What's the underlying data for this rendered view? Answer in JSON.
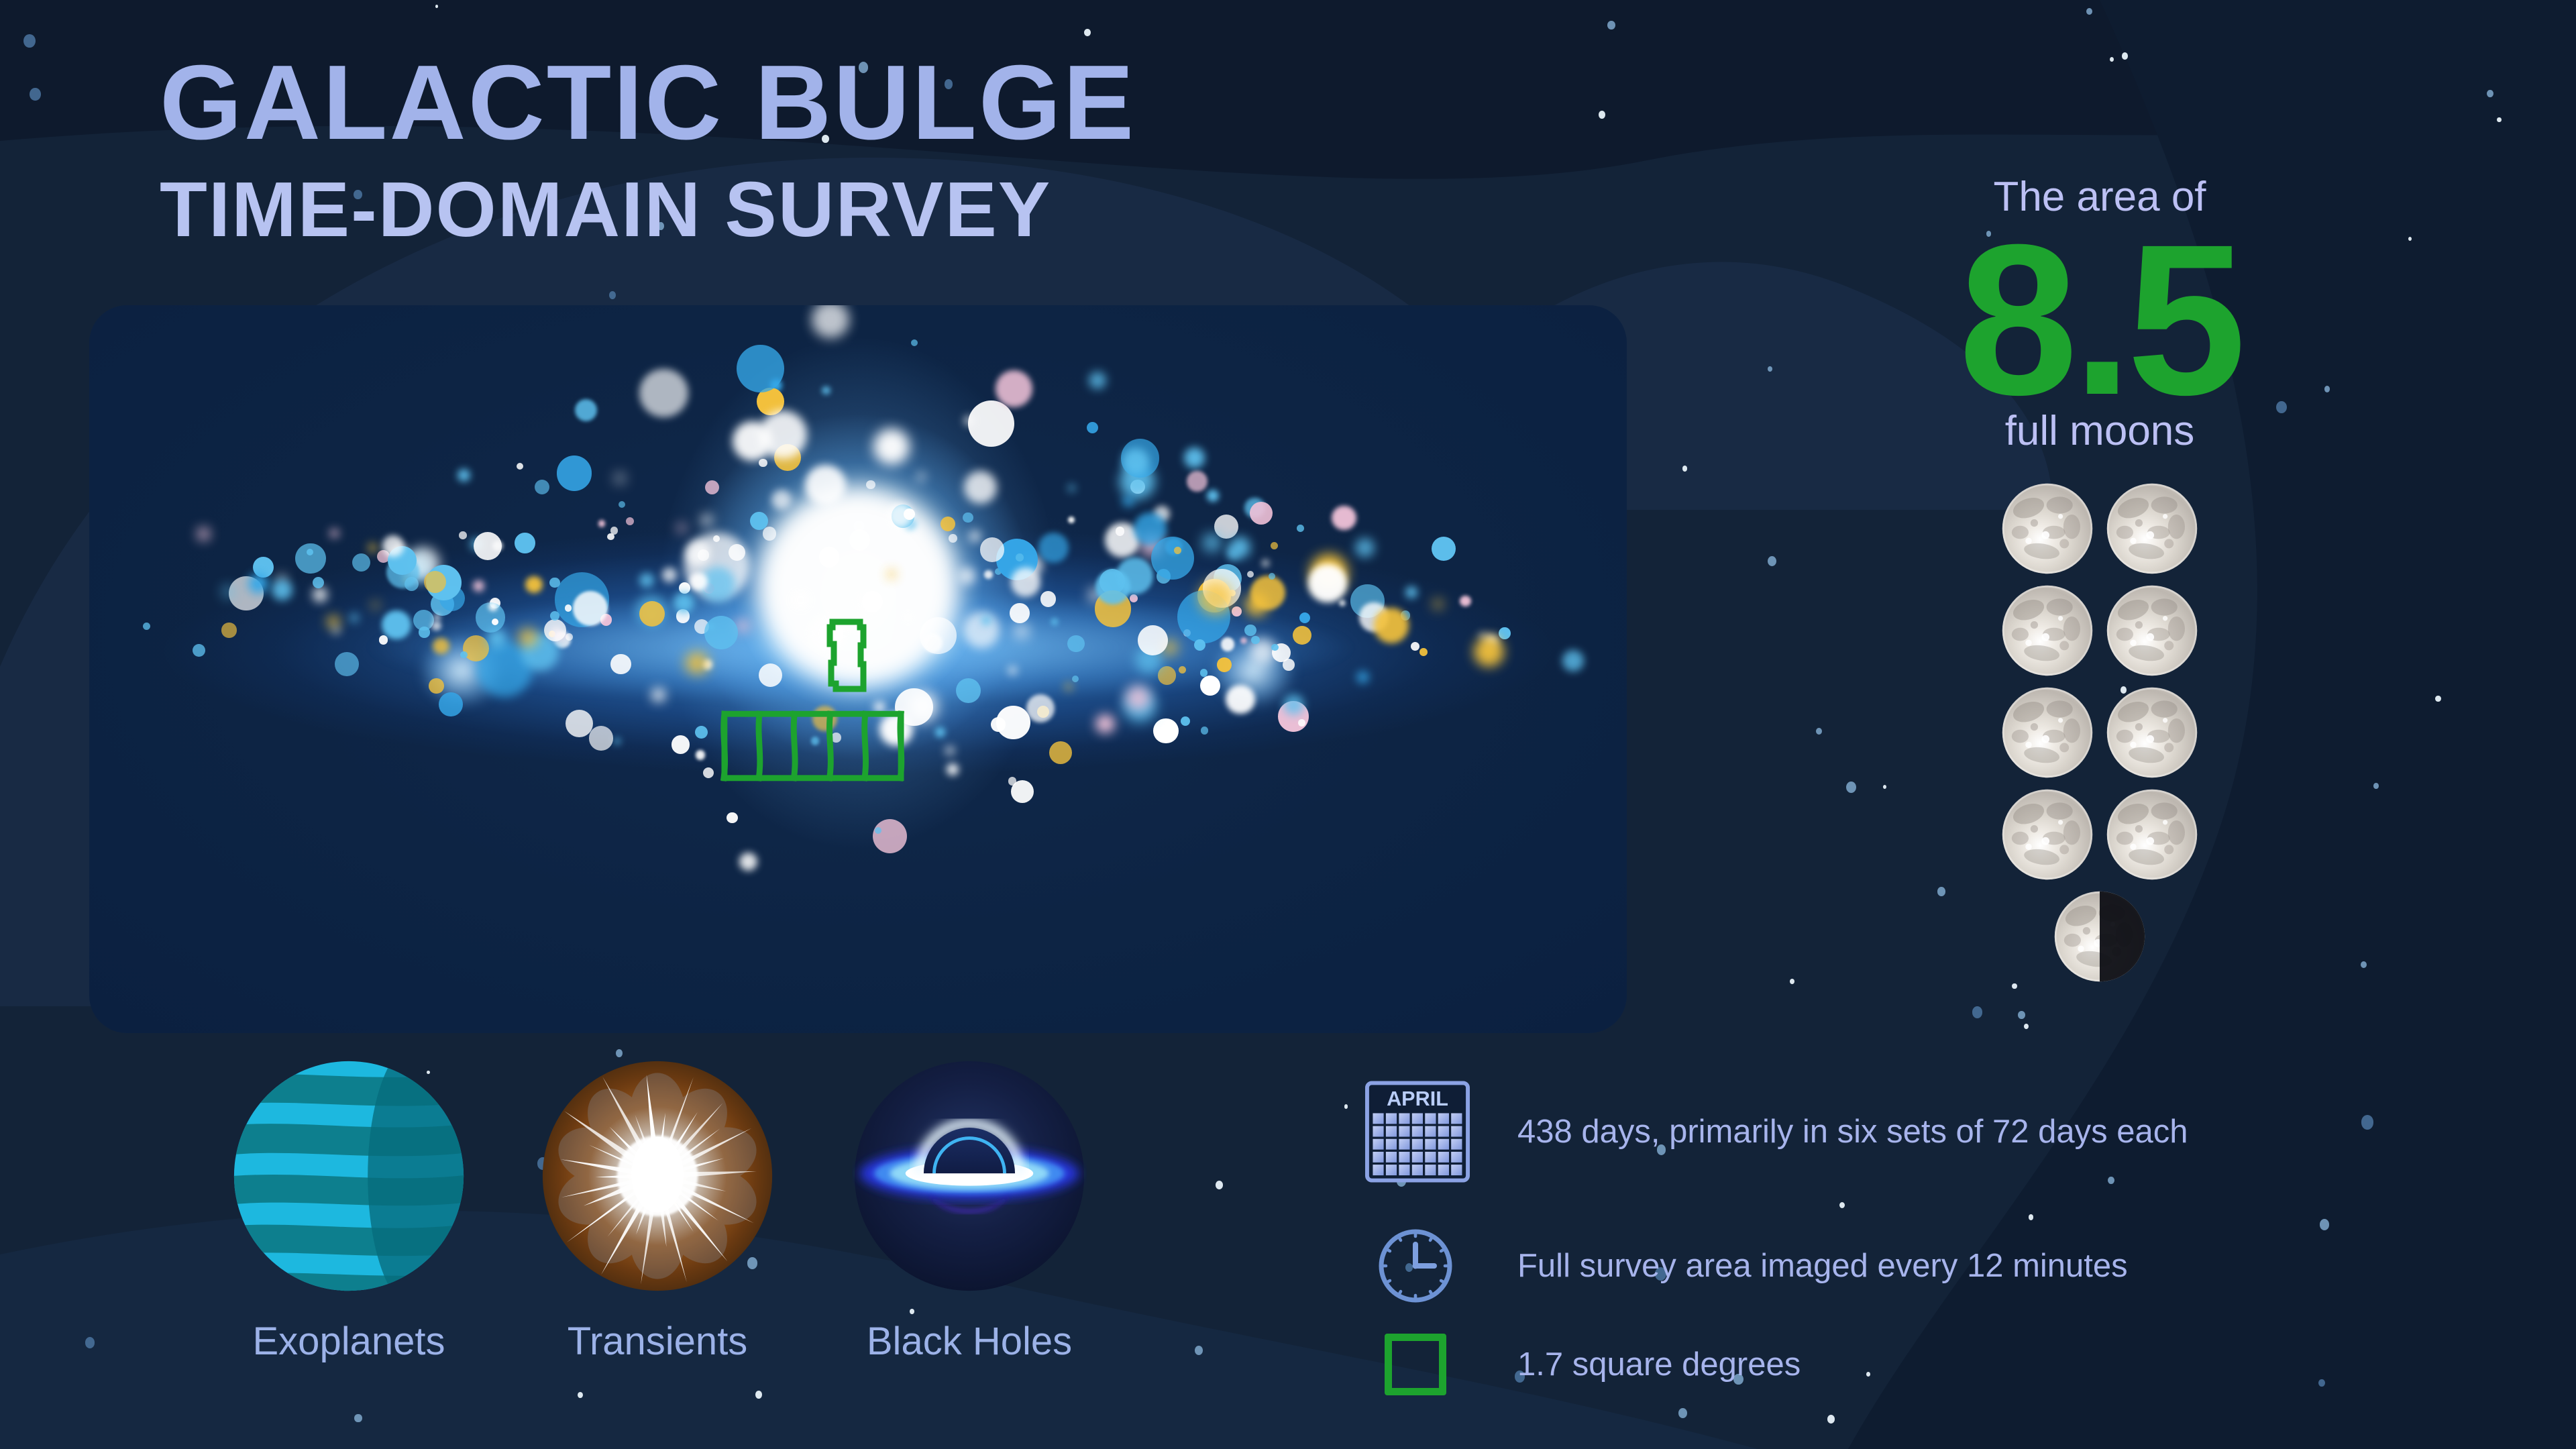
{
  "title": {
    "line1": "GALACTIC BULGE",
    "line2": "TIME-DOMAIN SURVEY"
  },
  "area_stat": {
    "intro": "The area of",
    "value": "8.5",
    "unit": "full moons",
    "full_moons": 8,
    "half_moons": 1
  },
  "survey_targets": [
    {
      "icon": "exoplanet-icon",
      "label": "Exoplanets"
    },
    {
      "icon": "transient-icon",
      "label": "Transients"
    },
    {
      "icon": "black-hole-icon",
      "label": "Black Holes"
    }
  ],
  "legend": [
    {
      "icon": "calendar-icon",
      "calendar_month": "APRIL",
      "text": "438 days, primarily in six sets of 72 days each"
    },
    {
      "icon": "clock-icon",
      "text": "Full survey area imaged every 12 minutes"
    },
    {
      "icon": "survey-footprint-icon",
      "text": "1.7 square degrees"
    }
  ],
  "colors": {
    "accent_green": "#1da32e",
    "title_line1": "#a2b3ea",
    "title_line2": "#b7c3f1",
    "body_text": "#a7b4ec",
    "stat_text": "#bcc0f4",
    "page_bg": "#132338",
    "panel_bg": "#0d2444",
    "galaxy_dots": [
      "#5ec1ef",
      "#ffffff",
      "#f4c23c",
      "#f0c2d8",
      "#35a7e8"
    ],
    "star_colors": [
      "#e9f3fa",
      "#7fa8cc",
      "#48709a"
    ]
  },
  "decor": {
    "seed": 7,
    "galaxy_dot_count": 300,
    "star_count": 74,
    "ray_count": 30
  }
}
